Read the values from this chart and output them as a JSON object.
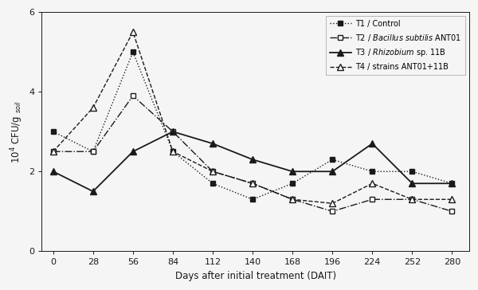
{
  "x": [
    0,
    28,
    56,
    84,
    112,
    140,
    168,
    196,
    224,
    252,
    280
  ],
  "T1": [
    3.0,
    2.5,
    5.0,
    2.5,
    1.7,
    1.3,
    1.7,
    2.3,
    2.0,
    2.0,
    1.7
  ],
  "T2": [
    2.5,
    2.5,
    3.9,
    3.0,
    2.0,
    1.7,
    1.3,
    1.0,
    1.3,
    1.3,
    1.0
  ],
  "T3": [
    2.0,
    1.5,
    2.5,
    3.0,
    2.7,
    2.3,
    2.0,
    2.0,
    2.7,
    1.7,
    1.7
  ],
  "T4": [
    2.5,
    3.6,
    5.5,
    2.5,
    2.0,
    1.7,
    1.3,
    1.2,
    1.7,
    1.3,
    1.3
  ],
  "xlabel": "Days after initial treatment (DAIT)",
  "ylabel": "$10^{4}$ CFU/g $_{soil}$",
  "ylim": [
    0,
    6
  ],
  "yticks": [
    0,
    2,
    4,
    6
  ],
  "xticks": [
    0,
    28,
    56,
    84,
    112,
    140,
    168,
    196,
    224,
    252,
    280
  ],
  "legend_T1": "T1 / Control",
  "legend_T4": "T4 / strains ANT01+11B",
  "color": "#1a1a1a",
  "background": "#f5f5f5"
}
